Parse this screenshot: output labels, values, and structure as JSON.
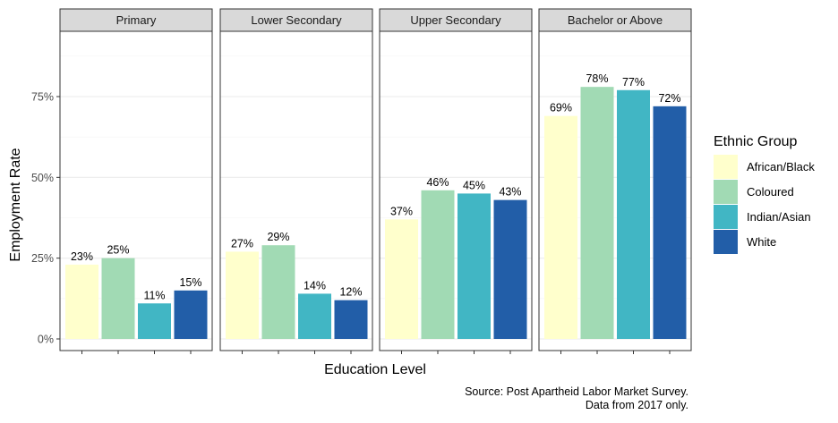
{
  "chart_data": {
    "type": "bar",
    "facet_by": "Education Level",
    "facets": [
      "Primary",
      "Lower Secondary",
      "Upper Secondary",
      "Bachelor or Above"
    ],
    "series": [
      {
        "name": "African/Black",
        "color": "#ffffcc",
        "values": [
          23,
          27,
          37,
          69
        ],
        "labels": [
          "23%",
          "27%",
          "37%",
          "69%"
        ]
      },
      {
        "name": "Coloured",
        "color": "#a1dab4",
        "values": [
          25,
          29,
          46,
          78
        ],
        "labels": [
          "25%",
          "29%",
          "46%",
          "78%"
        ]
      },
      {
        "name": "Indian/Asian",
        "color": "#41b6c4",
        "values": [
          11,
          14,
          45,
          77
        ],
        "labels": [
          "11%",
          "14%",
          "45%",
          "77%"
        ]
      },
      {
        "name": "White",
        "color": "#225ea8",
        "values": [
          15,
          12,
          43,
          72
        ],
        "labels": [
          "15%",
          "12%",
          "43%",
          "72%"
        ]
      }
    ],
    "ylim": [
      0,
      100
    ],
    "yticks": [
      0,
      25,
      50,
      75
    ],
    "ytick_labels": [
      "0%",
      "25%",
      "50%",
      "75%"
    ],
    "xlabel": "Education Level",
    "ylabel": "Employment Rate",
    "legend_title": "Ethnic Group",
    "legend_position": "right",
    "grid": true,
    "caption_lines": [
      "Source: Post Apartheid Labor Market Survey.",
      "Data from 2017 only."
    ]
  }
}
